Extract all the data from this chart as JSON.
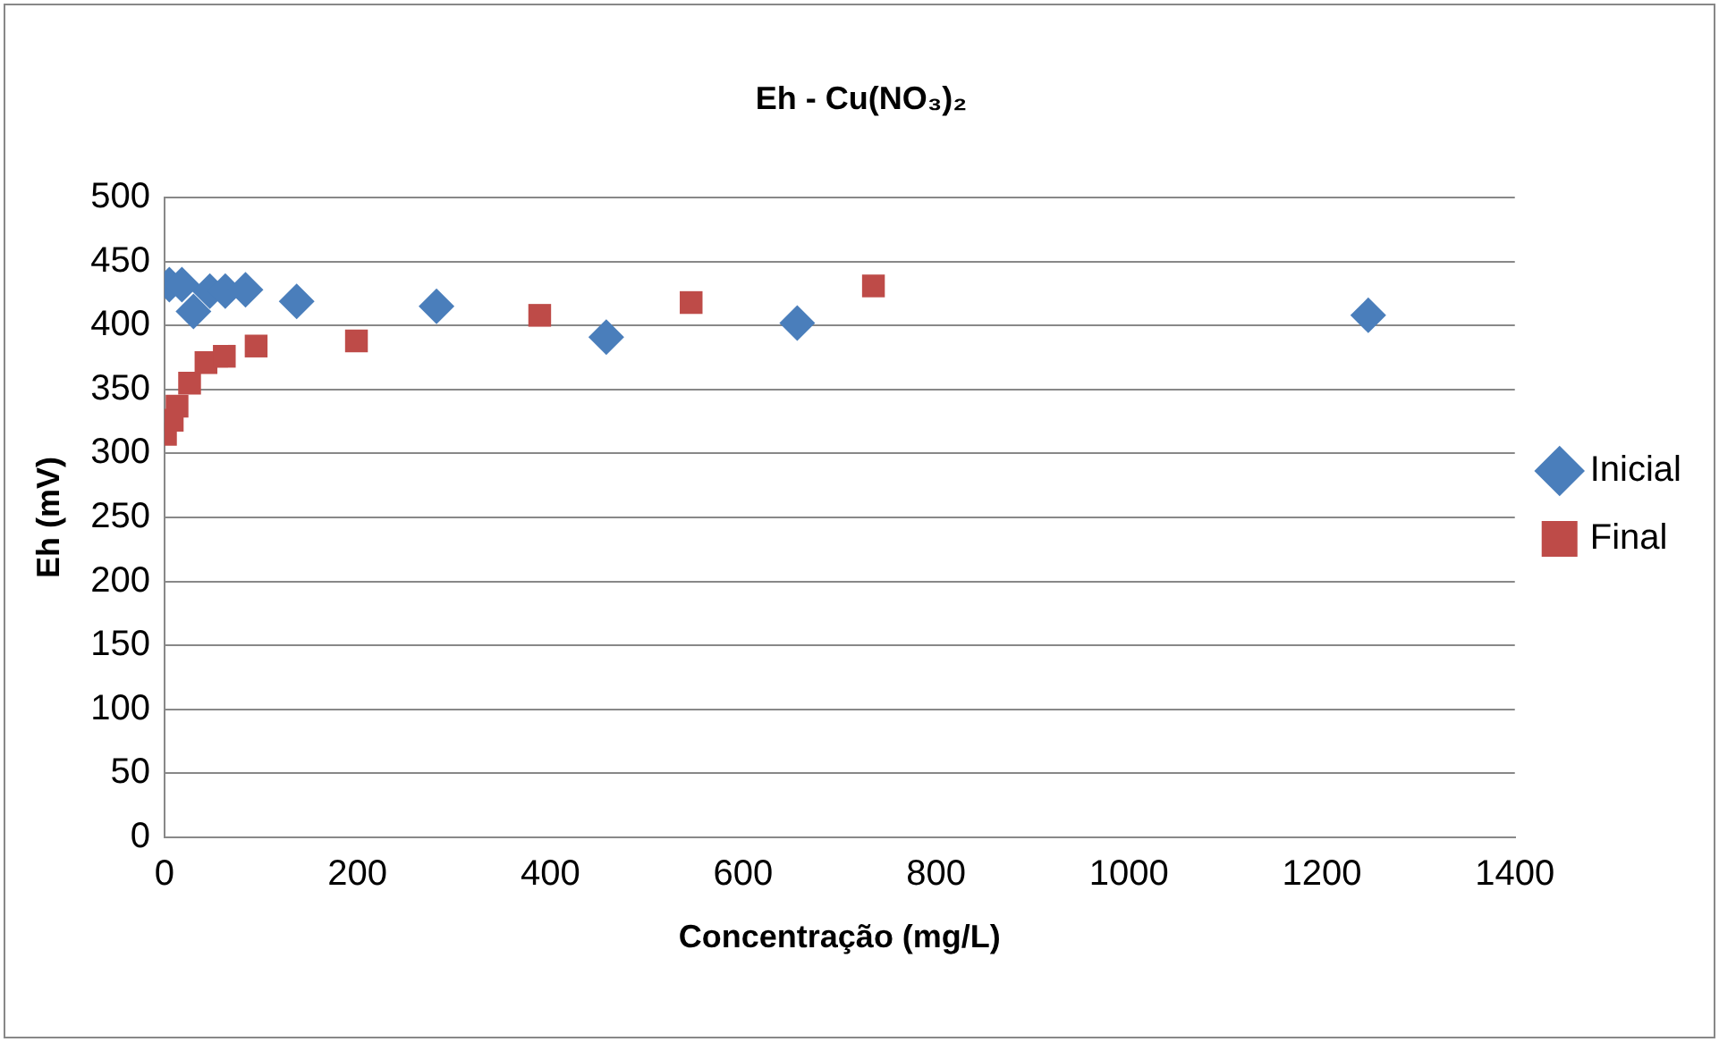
{
  "chart_data": {
    "type": "scatter",
    "title": "Eh - Cu(NO₃)₂",
    "xlabel": "Concentração (mg/L)",
    "ylabel": "Eh (mV)",
    "xlim": [
      0,
      1400
    ],
    "xticks": [
      0,
      200,
      400,
      600,
      800,
      1000,
      1200,
      1400
    ],
    "ylim": [
      0,
      500
    ],
    "yticks": [
      0,
      50,
      100,
      150,
      200,
      250,
      300,
      350,
      400,
      450,
      500
    ],
    "grid": "y",
    "legend": "right",
    "series": [
      {
        "name": "Inicial",
        "color": "#4a7ebb",
        "marker": "diamond",
        "x": [
          5,
          18,
          30,
          47,
          63,
          84,
          137,
          282,
          458,
          656,
          1248
        ],
        "values": [
          432,
          432,
          411,
          427,
          427,
          428,
          419,
          415,
          391,
          402,
          408
        ]
      },
      {
        "name": "Final",
        "color": "#be4b48",
        "marker": "square",
        "x": [
          1,
          8,
          13,
          26,
          43,
          62,
          95,
          199,
          389,
          546,
          735
        ],
        "values": [
          315,
          326,
          337,
          355,
          371,
          376,
          384,
          388,
          408,
          418,
          431
        ]
      }
    ]
  }
}
